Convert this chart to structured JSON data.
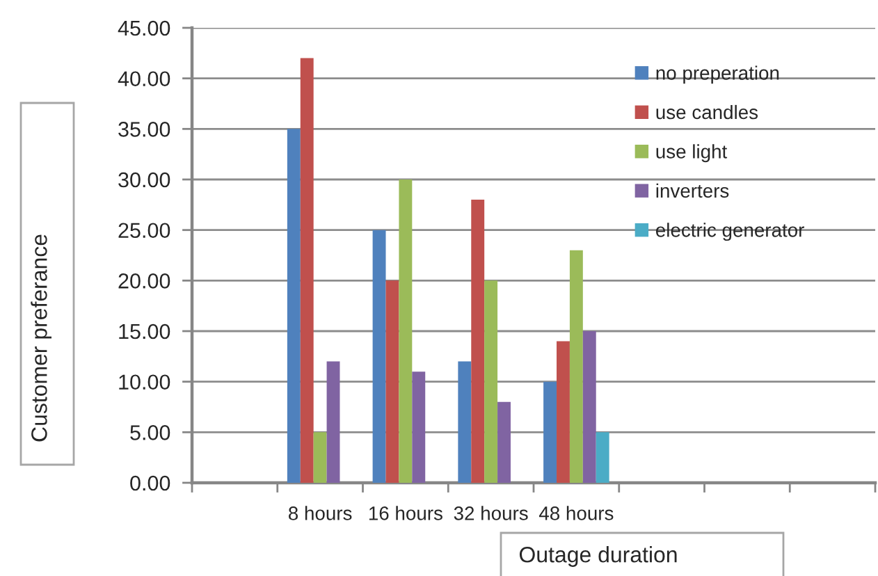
{
  "chart_data": {
    "type": "bar",
    "xlabel": "Outage duration",
    "ylabel": "Customer preferance",
    "categories": [
      null,
      "8 hours",
      "16 hours",
      "32 hours",
      "48 hours",
      null,
      null,
      null
    ],
    "series": [
      {
        "name": "no preperation",
        "color": "#4f81bd",
        "values": [
          null,
          35,
          25,
          12,
          10,
          null,
          null,
          null
        ]
      },
      {
        "name": "use candles",
        "color": "#c0504d",
        "values": [
          null,
          42,
          20,
          28,
          14,
          null,
          null,
          null
        ]
      },
      {
        "name": "use light",
        "color": "#9bbb59",
        "values": [
          null,
          5,
          30,
          20,
          23,
          null,
          null,
          null
        ]
      },
      {
        "name": "inverters",
        "color": "#8064a2",
        "values": [
          null,
          12,
          11,
          8,
          15,
          null,
          null,
          null
        ]
      },
      {
        "name": "electric generator",
        "color": "#4bacc6",
        "values": [
          null,
          null,
          null,
          null,
          5,
          null,
          null,
          null
        ]
      }
    ],
    "ylim": [
      0,
      45
    ],
    "yticks": [
      {
        "value": 0,
        "label": "0.00"
      },
      {
        "value": 5,
        "label": "5.00"
      },
      {
        "value": 10,
        "label": "10.00"
      },
      {
        "value": 15,
        "label": "15.00"
      },
      {
        "value": 20,
        "label": "20.00"
      },
      {
        "value": 25,
        "label": "25.00"
      },
      {
        "value": 30,
        "label": "30.00"
      },
      {
        "value": 35,
        "label": "35.00"
      },
      {
        "value": 40,
        "label": "40.00"
      },
      {
        "value": 45,
        "label": "45.00"
      }
    ],
    "grid": "y",
    "legend": "top right"
  }
}
